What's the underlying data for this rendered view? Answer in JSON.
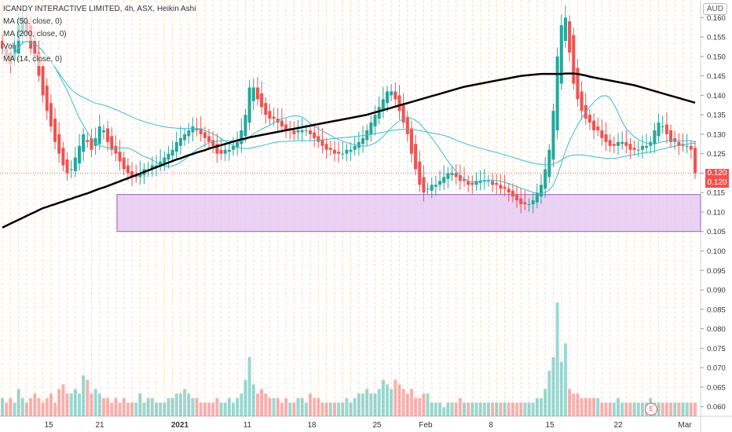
{
  "legend": {
    "title": "ICANDY INTERACTIVE LIMITED, 4h, ASX, Heikin Ashi",
    "ma1": "MA (50, close, 0)",
    "ma2": "MA (200, close, 0)",
    "vol": "Vol",
    "ma3": "MA (14, close, 0)"
  },
  "currency": "AUD",
  "event_marker": "E",
  "last_price": {
    "value": "0.120",
    "value2": "0.120"
  },
  "colors": {
    "up": "#26a69a",
    "down": "#ef5350",
    "ma200": "#000000",
    "ma_short": "#3cbcd0",
    "zone_fill": "#e1c3ef",
    "zone_stroke": "#9c5fbf",
    "grid_v": "#ffd9a8"
  },
  "chart_data": {
    "type": "candlestick",
    "title": "ICANDY INTERACTIVE LIMITED, 4h, ASX, Heikin Ashi",
    "x_ticks": [
      "15",
      "21",
      "2021",
      "11",
      "18",
      "25",
      "Feb",
      "8",
      "15",
      "22",
      "Mar"
    ],
    "y_ticks": [
      "0.160",
      "0.155",
      "0.150",
      "0.145",
      "0.140",
      "0.135",
      "0.130",
      "0.125",
      "0.120",
      "0.115",
      "0.110",
      "0.105",
      "0.100",
      "0.095",
      "0.090",
      "0.085",
      "0.080",
      "0.075",
      "0.070",
      "0.065",
      "0.060"
    ],
    "ylim": [
      0.0575,
      0.1645
    ],
    "support_zone": {
      "low": 0.105,
      "high": 0.1145
    },
    "closes": [
      0.152,
      0.15,
      0.148,
      0.153,
      0.158,
      0.16,
      0.156,
      0.152,
      0.15,
      0.145,
      0.14,
      0.136,
      0.132,
      0.128,
      0.125,
      0.122,
      0.12,
      0.121,
      0.124,
      0.127,
      0.13,
      0.128,
      0.126,
      0.129,
      0.132,
      0.131,
      0.128,
      0.126,
      0.125,
      0.123,
      0.121,
      0.12,
      0.119,
      0.119,
      0.12,
      0.121,
      0.121,
      0.122,
      0.122,
      0.123,
      0.124,
      0.125,
      0.126,
      0.128,
      0.129,
      0.13,
      0.131,
      0.132,
      0.131,
      0.13,
      0.129,
      0.128,
      0.127,
      0.125,
      0.125,
      0.126,
      0.126,
      0.127,
      0.128,
      0.131,
      0.135,
      0.142,
      0.142,
      0.139,
      0.137,
      0.135,
      0.134,
      0.134,
      0.133,
      0.132,
      0.131,
      0.131,
      0.13,
      0.131,
      0.131,
      0.131,
      0.13,
      0.129,
      0.128,
      0.127,
      0.126,
      0.126,
      0.125,
      0.125,
      0.125,
      0.126,
      0.126,
      0.127,
      0.128,
      0.129,
      0.131,
      0.133,
      0.135,
      0.137,
      0.139,
      0.141,
      0.141,
      0.139,
      0.136,
      0.133,
      0.13,
      0.125,
      0.121,
      0.117,
      0.115,
      0.116,
      0.117,
      0.117,
      0.118,
      0.119,
      0.12,
      0.12,
      0.119,
      0.118,
      0.118,
      0.117,
      0.117,
      0.118,
      0.118,
      0.118,
      0.118,
      0.117,
      0.117,
      0.116,
      0.116,
      0.115,
      0.114,
      0.113,
      0.112,
      0.112,
      0.112,
      0.113,
      0.115,
      0.117,
      0.121,
      0.126,
      0.136,
      0.15,
      0.158,
      0.16,
      0.151,
      0.143,
      0.139,
      0.136,
      0.134,
      0.133,
      0.131,
      0.131,
      0.129,
      0.128,
      0.127,
      0.127,
      0.128,
      0.128,
      0.127,
      0.126,
      0.126,
      0.126,
      0.127,
      0.127,
      0.128,
      0.131,
      0.133,
      0.132,
      0.13,
      0.128,
      0.128,
      0.127,
      0.127,
      0.127,
      0.126,
      0.12
    ],
    "volume_note": "Volume bars (estimated, arbitrary units)",
    "volumes": [
      4,
      3,
      4,
      3,
      6,
      4,
      3,
      4,
      5,
      4,
      3,
      4,
      5,
      3,
      6,
      7,
      5,
      5,
      6,
      5,
      9,
      8,
      5,
      6,
      5,
      4,
      4,
      3,
      4,
      3,
      4,
      3,
      3,
      3,
      5,
      3,
      4,
      4,
      3,
      3,
      3,
      4,
      4,
      5,
      5,
      6,
      5,
      4,
      4,
      3,
      3,
      3,
      3,
      4,
      3,
      3,
      4,
      3,
      4,
      5,
      8,
      13,
      7,
      5,
      6,
      5,
      4,
      4,
      4,
      3,
      4,
      3,
      3,
      4,
      4,
      3,
      5,
      4,
      4,
      3,
      3,
      3,
      3,
      3,
      3,
      4,
      3,
      4,
      5,
      5,
      6,
      5,
      5,
      6,
      8,
      7,
      6,
      8,
      7,
      6,
      5,
      6,
      4,
      4,
      5,
      5,
      3,
      3,
      3,
      2,
      3,
      3,
      3,
      4,
      3,
      3,
      3,
      3,
      3,
      3,
      3,
      3,
      3,
      3,
      3,
      3,
      3,
      3,
      3,
      3,
      3,
      3,
      4,
      4,
      6,
      10,
      13,
      25,
      12,
      16,
      6,
      5,
      5,
      4,
      4,
      4,
      4,
      4,
      3,
      3,
      3,
      3,
      4,
      3,
      3,
      3,
      3,
      3,
      3,
      3,
      4,
      3,
      3,
      3,
      3,
      3,
      3,
      3,
      3,
      3,
      3,
      3
    ],
    "ma200": [
      0.106,
      0.1065,
      0.107,
      0.1075,
      0.108,
      0.1085,
      0.109,
      0.1095,
      0.11,
      0.1105,
      0.111,
      0.1113,
      0.1117,
      0.112,
      0.1124,
      0.1127,
      0.1131,
      0.1134,
      0.1138,
      0.1141,
      0.1145,
      0.1148,
      0.1152,
      0.1156,
      0.116,
      0.1163,
      0.1167,
      0.1171,
      0.1175,
      0.1179,
      0.1183,
      0.1187,
      0.1191,
      0.1195,
      0.1199,
      0.1203,
      0.1207,
      0.1211,
      0.1215,
      0.1219,
      0.1223,
      0.1227,
      0.1231,
      0.1235,
      0.1238,
      0.1242,
      0.1246,
      0.1249,
      0.1253,
      0.1256,
      0.1259,
      0.1263,
      0.1266,
      0.1269,
      0.1272,
      0.1275,
      0.1278,
      0.1281,
      0.1284,
      0.1287,
      0.1289,
      0.1292,
      0.1294,
      0.1296,
      0.1298,
      0.13,
      0.1302,
      0.1304,
      0.1306,
      0.1308,
      0.131,
      0.1312,
      0.1314,
      0.1316,
      0.1318,
      0.132,
      0.1322,
      0.1324,
      0.1326,
      0.1328,
      0.133,
      0.1332,
      0.1334,
      0.1336,
      0.1338,
      0.134,
      0.1342,
      0.1344,
      0.1346,
      0.1348,
      0.135,
      0.1353,
      0.1356,
      0.1359,
      0.1362,
      0.1365,
      0.1368,
      0.1371,
      0.1374,
      0.1377,
      0.138,
      0.1383,
      0.1386,
      0.1389,
      0.1392,
      0.1395,
      0.1398,
      0.1401,
      0.1404,
      0.1407,
      0.141,
      0.1413,
      0.1416,
      0.1419,
      0.1422,
      0.1424,
      0.1426,
      0.1428,
      0.143,
      0.1432,
      0.1434,
      0.1436,
      0.1438,
      0.144,
      0.1442,
      0.1444,
      0.1446,
      0.1448,
      0.145,
      0.1451,
      0.1452,
      0.1453,
      0.1454,
      0.1455,
      0.1455,
      0.1455,
      0.1455,
      0.1455,
      0.1455,
      0.1456,
      0.1456,
      0.1456,
      0.1455,
      0.1453,
      0.1451,
      0.1448,
      0.1446,
      0.1444,
      0.1442,
      0.144,
      0.1438,
      0.1436,
      0.1434,
      0.1432,
      0.143,
      0.1428,
      0.1426,
      0.1423,
      0.142,
      0.1417,
      0.1414,
      0.1411,
      0.1408,
      0.1405,
      0.1402,
      0.1399,
      0.1396,
      0.1393,
      0.139,
      0.1387,
      0.1384,
      0.1381
    ]
  }
}
